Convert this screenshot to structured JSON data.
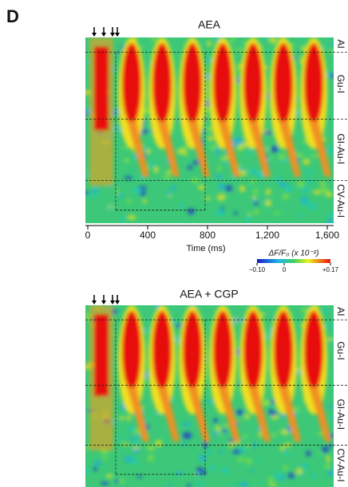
{
  "panel_label": "D",
  "panels": [
    {
      "title": "AEA",
      "regions": [
        "AI",
        "Gu-I",
        "GI-Au-I",
        "CV-Au-I"
      ]
    },
    {
      "title": "AEA + CGP",
      "regions": [
        "AI",
        "Gu-I",
        "GI-Au-I",
        "CV-Au-I"
      ]
    }
  ],
  "x_axis": {
    "label": "Time (ms)",
    "ticks": [
      0,
      400,
      800,
      {
        "value": 1200,
        "label": "1,200"
      },
      {
        "value": 1600,
        "label": "1,600"
      }
    ],
    "lim": [
      0,
      1600
    ]
  },
  "colorbar": {
    "label": "ΔF/F₀ (x 10⁻²)",
    "lim": [
      -0.1,
      0.17
    ],
    "ticks": [
      {
        "value": -0.1,
        "label": "−0.10"
      },
      0,
      {
        "value": 0.17,
        "label": "+0.17"
      }
    ]
  }
}
